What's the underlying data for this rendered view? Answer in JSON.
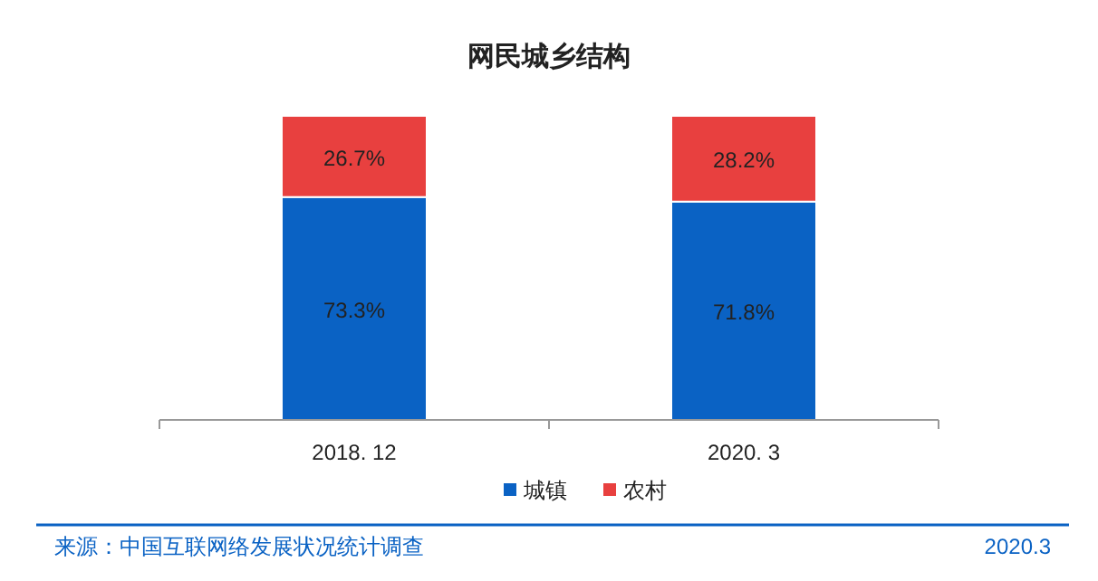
{
  "chart_data": {
    "type": "bar",
    "title": "网民城乡结构",
    "categories": [
      "2018. 12",
      "2020. 3"
    ],
    "stacked": true,
    "legend": "bottom",
    "series": [
      {
        "name": "城镇",
        "color": "#0a62c4",
        "values": [
          73.3,
          71.8
        ],
        "value_labels": [
          "73.3%",
          "71.8%"
        ]
      },
      {
        "name": "农村",
        "color": "#e8403f",
        "values": [
          26.7,
          28.2
        ],
        "value_labels": [
          "26.7%",
          "28.2%"
        ]
      }
    ],
    "annotations": [
      "来源：中国互联网络发展状况统计调查",
      "2020.3"
    ]
  }
}
